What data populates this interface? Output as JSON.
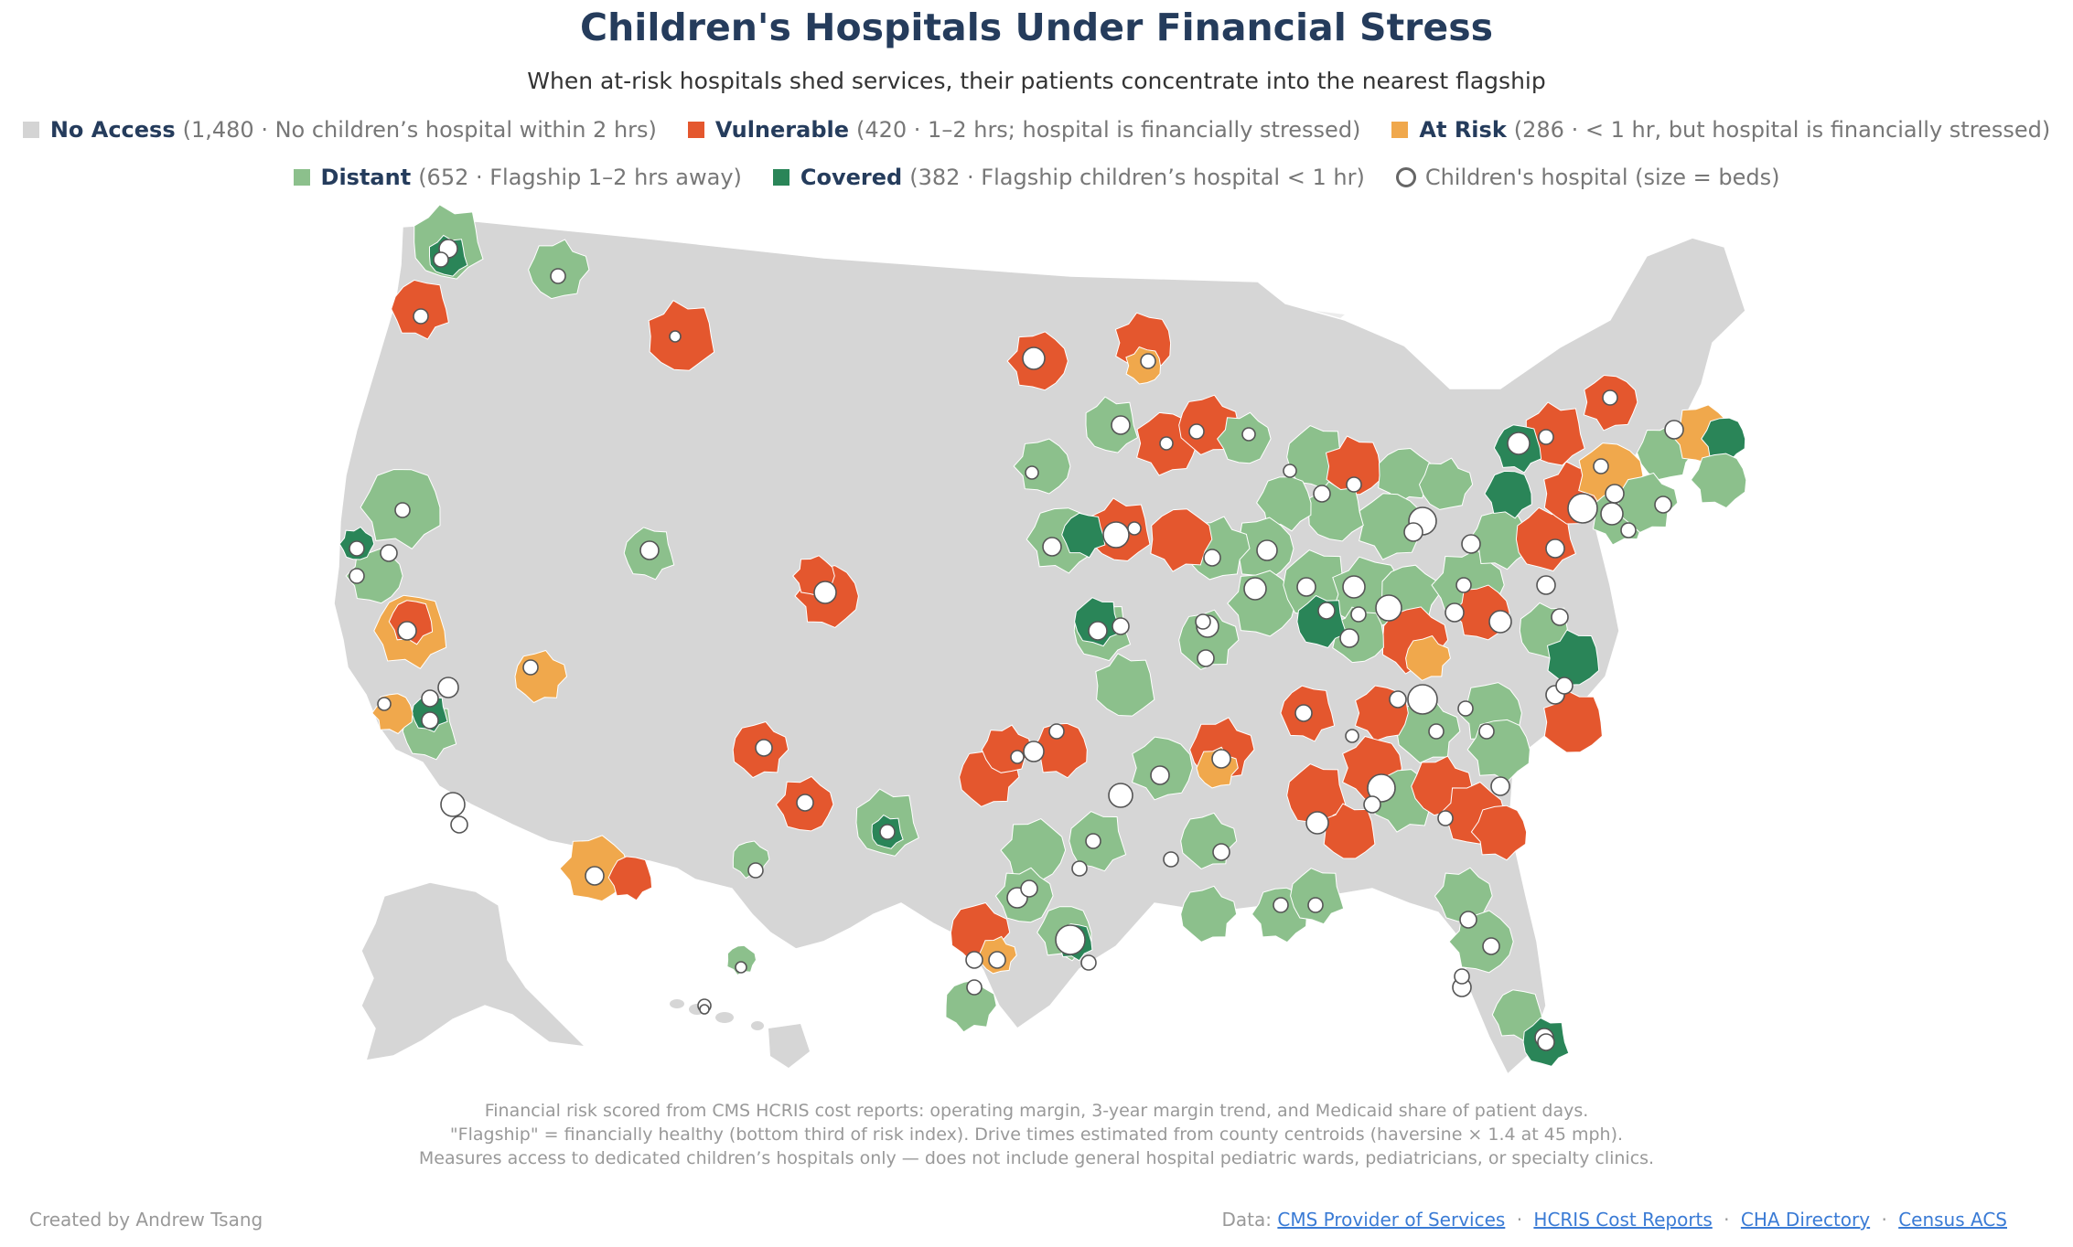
{
  "header": {
    "title": "Children's Hospitals Under Financial Stress",
    "subtitle": "When at-risk hospitals shed services, their patients concentrate into the nearest flagship"
  },
  "legend": {
    "no_access": {
      "name": "No Access",
      "desc": "(1,480 · No children’s hospital within 2 hrs)",
      "color": "#d4d4d4"
    },
    "vulnerable": {
      "name": "Vulnerable",
      "desc": "(420 · 1–2 hrs; hospital is financially stressed)",
      "color": "#e4572e"
    },
    "at_risk": {
      "name": "At Risk",
      "desc": "(286 · < 1 hr, but hospital is financially stressed)",
      "color": "#f0a84c"
    },
    "distant": {
      "name": "Distant",
      "desc": "(652 · Flagship 1–2 hrs away)",
      "color": "#8cc08c"
    },
    "covered": {
      "name": "Covered",
      "desc": "(382 · Flagship children’s hospital < 1 hr)",
      "color": "#2a8558"
    },
    "hospital": {
      "label": "Children's hospital (size = beds)"
    }
  },
  "notes": {
    "line1": "Financial risk scored from CMS HCRIS cost reports: operating margin, 3-year margin trend, and Medicaid share of patient days.",
    "line2": "\"Flagship\" = financially healthy (bottom third of risk index). Drive times estimated from county centroids (haversine × 1.4 at 45 mph).",
    "line3": "Measures access to dedicated children’s hospitals only — does not include general hospital pediatric wards, pediatricians, or specialty clinics."
  },
  "footer": {
    "credit": "Created by Andrew Tsang",
    "data_label": "Data:",
    "sources": [
      "CMS Provider of Services",
      "HCRIS Cost Reports",
      "CHA Directory",
      "Census ACS"
    ],
    "separator": "·"
  },
  "colors": {
    "land": "#d6d6d6",
    "water": "#ececec",
    "hospital_stroke": "#555555",
    "hospital_fill": "#ffffff"
  }
}
